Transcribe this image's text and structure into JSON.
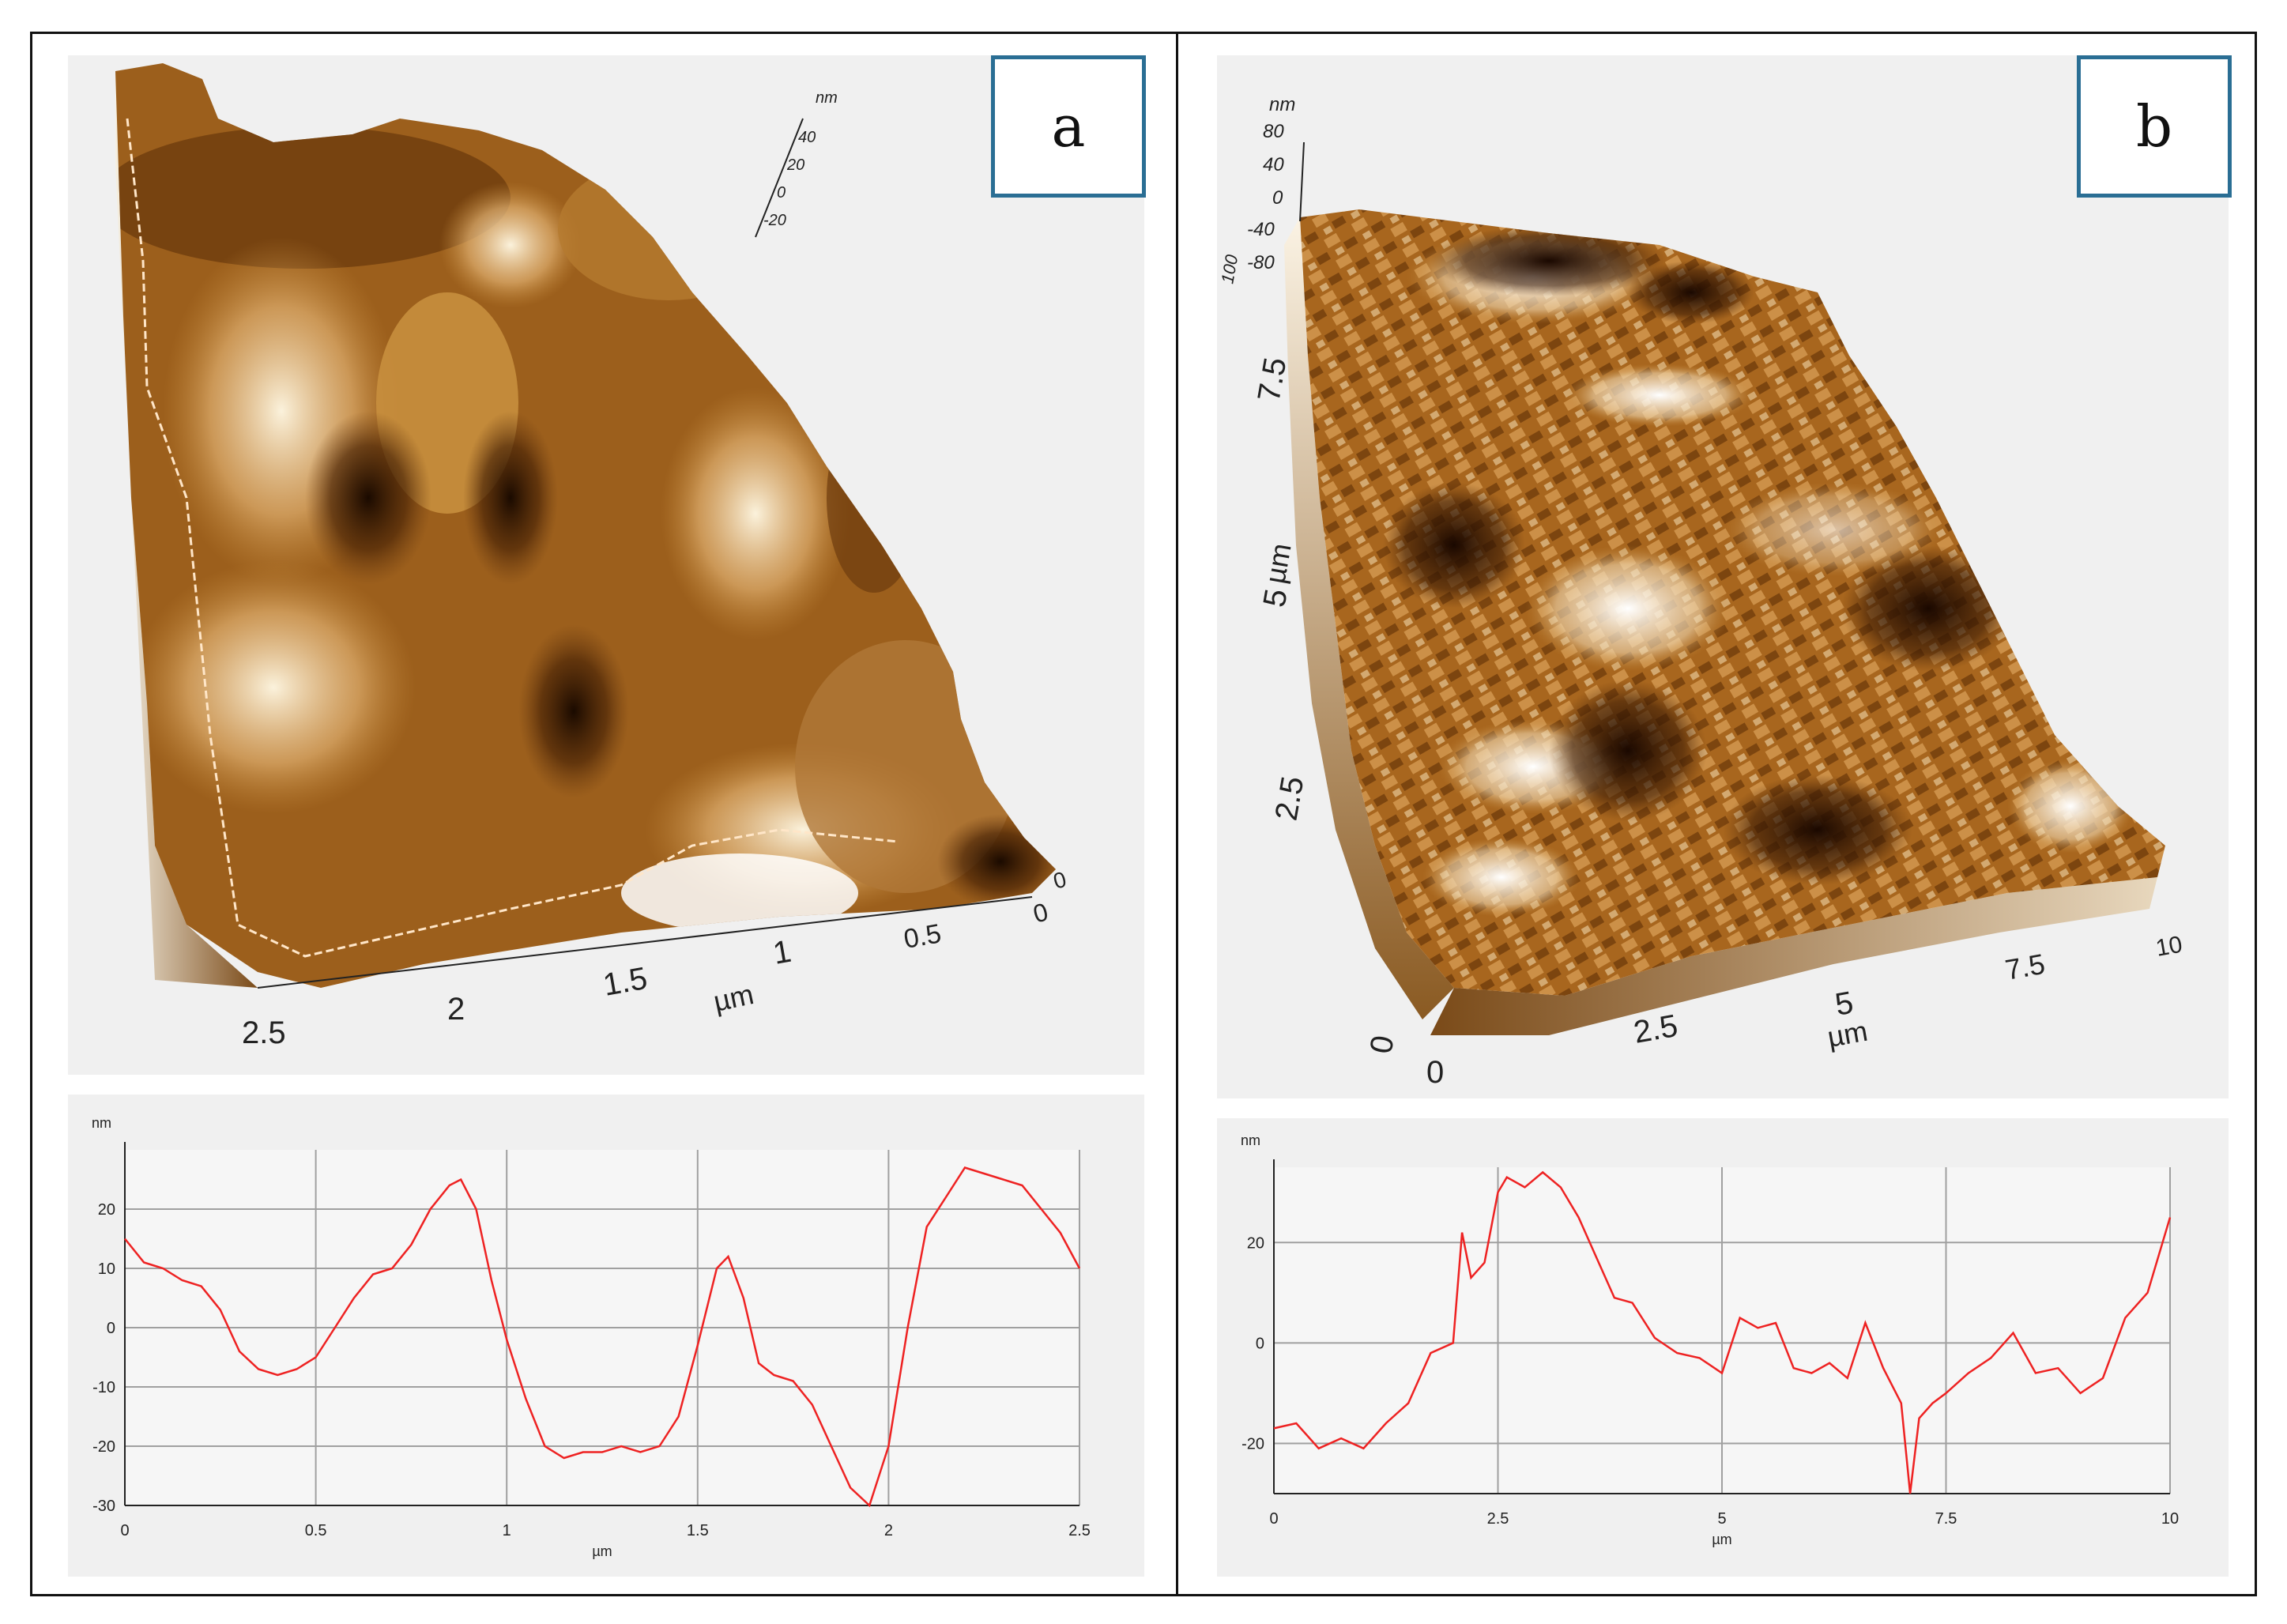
{
  "panels": [
    {
      "label": "a",
      "surface": {
        "z_unit": "nm",
        "z_ticks": [
          "40",
          "20",
          "0",
          "-20"
        ],
        "xy_unit": "µm",
        "x_ticks": [
          "2.5",
          "2",
          "1.5",
          "1",
          "0.5",
          "0"
        ],
        "y_ticks": [
          "0"
        ]
      }
    },
    {
      "label": "b",
      "surface": {
        "z_unit": "nm",
        "z_ticks": [
          "80",
          "40",
          "0",
          "-40",
          "-80",
          "100"
        ],
        "xy_unit": "µm",
        "x_ticks": [
          "0",
          "2.5",
          "5",
          "7.5",
          "10"
        ],
        "y_ticks": [
          "2.5",
          "5",
          "7.5"
        ],
        "y_label": "µm",
        "origin_labels": [
          "0"
        ]
      }
    }
  ],
  "colors": {
    "profile_line": "#ee2222",
    "afm_dark": "#2a1200",
    "afm_mid": "#a0601a",
    "afm_light": "#f5e6c8",
    "label_border": "#2a6e94"
  },
  "chart_data": [
    {
      "type": "line",
      "ylabel": "nm",
      "xlabel": "µm",
      "xlim": [
        0,
        2.5
      ],
      "ylim": [
        -30,
        30
      ],
      "xticks": [
        "0",
        "0.5",
        "1",
        "1.5",
        "2",
        "2.5"
      ],
      "yticks": [
        "20",
        "10",
        "0",
        "-10",
        "-20",
        "-30"
      ],
      "grid": true,
      "series": [
        {
          "x": [
            0,
            0.05,
            0.1,
            0.15,
            0.2,
            0.25,
            0.3,
            0.35,
            0.4,
            0.45,
            0.5,
            0.55,
            0.6,
            0.65,
            0.7,
            0.75,
            0.8,
            0.85,
            0.88,
            0.92,
            0.96,
            1.0,
            1.05,
            1.1,
            1.15,
            1.2,
            1.25,
            1.3,
            1.35,
            1.4,
            1.45,
            1.5,
            1.55,
            1.58,
            1.62,
            1.66,
            1.7,
            1.75,
            1.8,
            1.85,
            1.9,
            1.95,
            2.0,
            2.05,
            2.1,
            2.15,
            2.2,
            2.25,
            2.3,
            2.35,
            2.4,
            2.45,
            2.5
          ],
          "y": [
            15,
            11,
            10,
            8,
            7,
            3,
            -4,
            -7,
            -8,
            -7,
            -5,
            0,
            5,
            9,
            10,
            14,
            20,
            24,
            25,
            20,
            8,
            -2,
            -12,
            -20,
            -22,
            -21,
            -21,
            -20,
            -21,
            -20,
            -15,
            -3,
            10,
            12,
            5,
            -6,
            -8,
            -9,
            -13,
            -20,
            -27,
            -30,
            -20,
            0,
            17,
            22,
            27,
            26,
            25,
            24,
            20,
            16,
            10
          ]
        }
      ]
    },
    {
      "type": "line",
      "ylabel": "nm",
      "xlabel": "µm",
      "xlim": [
        0,
        10
      ],
      "ylim": [
        -30,
        35
      ],
      "xticks": [
        "0",
        "2.5",
        "5",
        "7.5",
        "10"
      ],
      "yticks": [
        "20",
        "0",
        "-20"
      ],
      "grid": true,
      "series": [
        {
          "x": [
            0,
            0.25,
            0.5,
            0.75,
            1.0,
            1.25,
            1.5,
            1.75,
            2.0,
            2.1,
            2.2,
            2.35,
            2.5,
            2.6,
            2.8,
            3.0,
            3.2,
            3.4,
            3.6,
            3.8,
            4.0,
            4.25,
            4.5,
            4.75,
            5.0,
            5.2,
            5.4,
            5.6,
            5.8,
            6.0,
            6.2,
            6.4,
            6.6,
            6.8,
            7.0,
            7.1,
            7.2,
            7.35,
            7.5,
            7.75,
            8.0,
            8.25,
            8.5,
            8.75,
            9.0,
            9.25,
            9.5,
            9.75,
            10.0
          ],
          "y": [
            -17,
            -16,
            -21,
            -19,
            -21,
            -16,
            -12,
            -2,
            0,
            22,
            13,
            16,
            30,
            33,
            31,
            34,
            31,
            25,
            17,
            9,
            8,
            1,
            -2,
            -3,
            -6,
            5,
            3,
            4,
            -5,
            -6,
            -4,
            -7,
            4,
            -5,
            -12,
            -30,
            -15,
            -12,
            -10,
            -6,
            -3,
            2,
            -6,
            -5,
            -10,
            -7,
            5,
            10,
            25
          ]
        }
      ]
    }
  ]
}
